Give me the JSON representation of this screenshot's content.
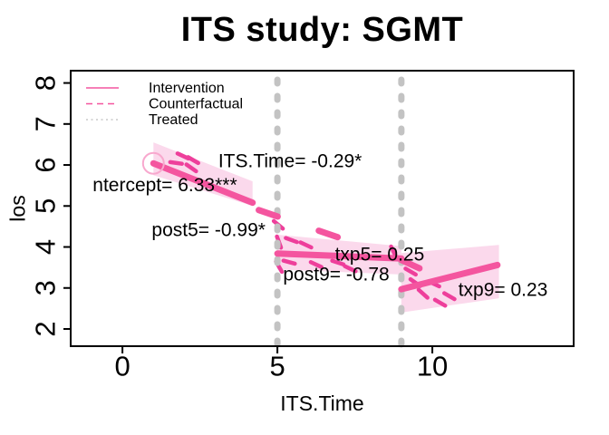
{
  "chart_data": {
    "type": "line",
    "title": "ITS study: SGMT",
    "xlabel": "ITS.Time",
    "ylabel": "los",
    "x_ticks": [
      0,
      5,
      10
    ],
    "y_ticks": [
      2,
      3,
      4,
      5,
      6,
      7,
      8
    ],
    "xlim": [
      -1.67,
      14.56
    ],
    "ylim": [
      1.58,
      8.3
    ],
    "grid": false,
    "legend": {
      "position": "topleft",
      "items": [
        {
          "label": "Intervention",
          "style": "solid",
          "color": "#f4559f"
        },
        {
          "label": "Counterfactual",
          "style": "dashed",
          "color": "#f4559f"
        },
        {
          "label": "Treated",
          "style": "dotted",
          "color": "#c8c8c8"
        }
      ]
    },
    "interruptions": [
      5,
      9
    ],
    "series": [
      {
        "name": "intervention-segment-1",
        "x": [
          1,
          4.2
        ],
        "y": [
          6.04,
          5.08
        ]
      },
      {
        "name": "intervention-segment-2",
        "x": [
          5,
          9
        ],
        "y": [
          3.84,
          3.72
        ]
      },
      {
        "name": "intervention-segment-3",
        "x": [
          9,
          12.1
        ],
        "y": [
          2.97,
          3.56
        ]
      }
    ],
    "counterfactual_lines": [
      {
        "name": "counterfactual-after-5",
        "x": [
          4.4,
          7.4
        ],
        "y": [
          4.9,
          4.12
        ]
      },
      {
        "name": "counterfactual-after-9",
        "x": [
          9,
          9.9
        ],
        "y": [
          3.68,
          3.37
        ]
      }
    ],
    "confidence_bands": [
      {
        "name": "band-segment-1",
        "points": [
          [
            1,
            6.55
          ],
          [
            4.2,
            5.6
          ],
          [
            4.2,
            5.0
          ],
          [
            1,
            5.75
          ]
        ]
      },
      {
        "name": "band-segment-2",
        "points": [
          [
            5,
            4.3
          ],
          [
            9,
            4.02
          ],
          [
            9,
            3.33
          ],
          [
            5,
            3.45
          ]
        ]
      },
      {
        "name": "band-segment-3",
        "points": [
          [
            9,
            3.85
          ],
          [
            12.15,
            4.05
          ],
          [
            12.15,
            2.75
          ],
          [
            9,
            2.4
          ]
        ]
      }
    ],
    "short_dash_marks": [
      {
        "x": 1.95,
        "y": 6.22,
        "angle": -25
      },
      {
        "x": 2.28,
        "y": 6.12,
        "angle": -30
      },
      {
        "x": 1.73,
        "y": 6.05,
        "angle": -8
      },
      {
        "x": 2.22,
        "y": 5.93,
        "angle": -35
      },
      {
        "x": 5.03,
        "y": 4.54,
        "angle": -40
      },
      {
        "x": 5.05,
        "y": 4.12,
        "angle": -70
      },
      {
        "x": 5.45,
        "y": 4.17,
        "angle": -20
      },
      {
        "x": 5.92,
        "y": 4.05,
        "angle": -25
      },
      {
        "x": 5.05,
        "y": 3.52,
        "angle": -60
      },
      {
        "x": 5.38,
        "y": 3.63,
        "angle": -15
      },
      {
        "x": 6.25,
        "y": 3.57,
        "angle": -25
      },
      {
        "x": 6.95,
        "y": 3.62,
        "angle": -18
      },
      {
        "x": 7.35,
        "y": 3.47,
        "angle": -25
      },
      {
        "x": 8.75,
        "y": 3.88,
        "angle": -65
      },
      {
        "x": 9.3,
        "y": 3.4,
        "angle": -30
      },
      {
        "x": 9.45,
        "y": 3.13,
        "angle": -35
      },
      {
        "x": 9.7,
        "y": 2.86,
        "angle": -42
      },
      {
        "x": 10.05,
        "y": 3.1,
        "angle": -25
      },
      {
        "x": 10.25,
        "y": 2.64,
        "angle": -30
      },
      {
        "x": 10.55,
        "y": 2.8,
        "angle": -30
      }
    ],
    "start_marker": {
      "x": 1,
      "y": 6.04
    },
    "annotations": [
      {
        "text": "ntercept= 6.33***",
        "x": 1.37,
        "y": 5.5
      },
      {
        "text": "ITS.Time= -0.29*",
        "x": 5.41,
        "y": 6.09
      },
      {
        "text": "post5= -0.99*",
        "x": 2.78,
        "y": 4.41
      },
      {
        "text": "txp5= 0.25",
        "x": 8.3,
        "y": 3.81
      },
      {
        "text": "post9= -0.78",
        "x": 6.9,
        "y": 3.33
      },
      {
        "text": "txp9= 0.23",
        "x": 12.28,
        "y": 2.95
      }
    ],
    "colors": {
      "line": "#f4559f",
      "band": "#fbd9ec",
      "marks": "#ee3f9b",
      "marker_ring": "#f8a8ce",
      "vline": "#c3c3c3",
      "axis": "#000000",
      "text": "#000000"
    }
  }
}
